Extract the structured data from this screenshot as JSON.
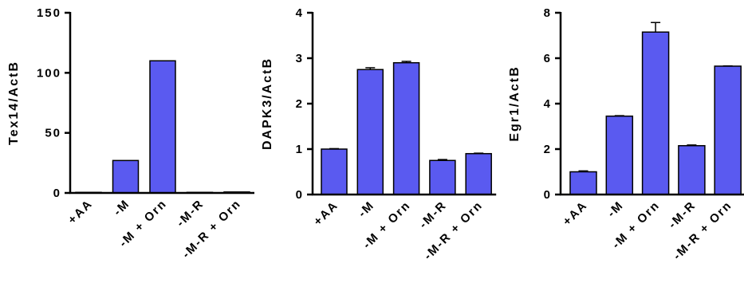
{
  "chart_data": [
    {
      "type": "bar",
      "ylabel": "Tex14/ActB",
      "ylim": [
        0,
        150
      ],
      "yticks": [
        0,
        50,
        100,
        150
      ],
      "categories": [
        "+AA",
        "-M",
        "-M + Orn",
        "-M-R",
        "-M-R + Orn"
      ],
      "values": [
        0.5,
        27,
        110,
        0.5,
        0.8
      ],
      "errors": [
        0,
        0,
        0,
        0,
        0
      ],
      "color": "#5a5af0"
    },
    {
      "type": "bar",
      "ylabel": "DAPK3/ActB",
      "ylim": [
        0,
        4
      ],
      "yticks": [
        0,
        1,
        2,
        3,
        4
      ],
      "categories": [
        "+AA",
        "-M",
        "-M + Orn",
        "-M-R",
        "-M-R + Orn"
      ],
      "values": [
        1.0,
        2.75,
        2.9,
        0.75,
        0.9
      ],
      "errors": [
        0.01,
        0.04,
        0.03,
        0.02,
        0.01
      ],
      "color": "#5a5af0"
    },
    {
      "type": "bar",
      "ylabel": "Egr1/ActB",
      "ylim": [
        0,
        8
      ],
      "yticks": [
        0,
        2,
        4,
        6,
        8
      ],
      "categories": [
        "+AA",
        "-M",
        "-M + Orn",
        "-M-R",
        "-M-R + Orn"
      ],
      "values": [
        1.0,
        3.45,
        7.15,
        2.15,
        5.65
      ],
      "errors": [
        0.04,
        0.02,
        0.42,
        0.03,
        0.01
      ],
      "color": "#5a5af0"
    }
  ]
}
